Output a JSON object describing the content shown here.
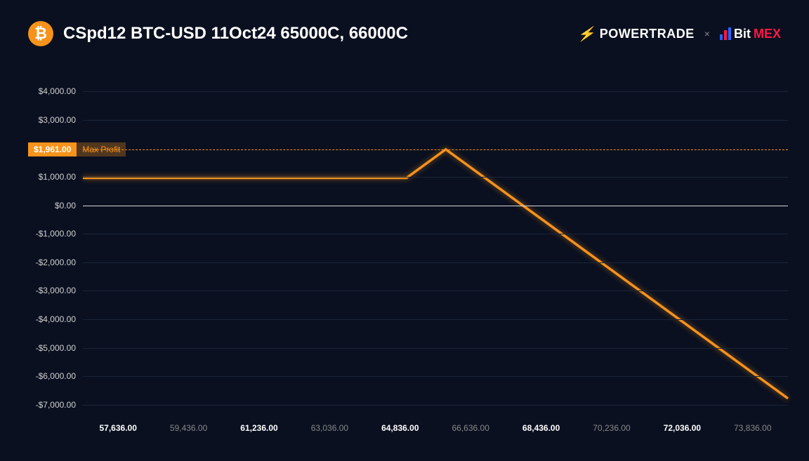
{
  "header": {
    "title": "CSpd12 BTC-USD 11Oct24 65000C, 66000C",
    "btc_glyph": "₿",
    "powertrade": "POWERTRADE",
    "separator": "×",
    "bitmex_prefix": "Bit",
    "bitmex_suffix": "MEX"
  },
  "chart": {
    "type": "line",
    "background_color": "#0a1020",
    "line_color": "#f7931a",
    "line_width": 3.5,
    "grid_color": "#1a2438",
    "zero_line_color": "#d8d8d8",
    "max_profit_color": "#f7931a",
    "y": {
      "min": -7000,
      "max": 4000,
      "ticks": [
        {
          "v": 4000,
          "label": "$4,000.00"
        },
        {
          "v": 3000,
          "label": "$3,000.00"
        },
        {
          "v": 1000,
          "label": "$1,000.00"
        },
        {
          "v": 0,
          "label": "$0.00"
        },
        {
          "v": -1000,
          "label": "-$1,000.00"
        },
        {
          "v": -2000,
          "label": "-$2,000.00"
        },
        {
          "v": -3000,
          "label": "-$3,000.00"
        },
        {
          "v": -4000,
          "label": "-$4,000.00"
        },
        {
          "v": -5000,
          "label": "-$5,000.00"
        },
        {
          "v": -6000,
          "label": "-$6,000.00"
        },
        {
          "v": -7000,
          "label": "-$7,000.00"
        }
      ]
    },
    "x": {
      "min": 56736,
      "max": 74736,
      "ticks": [
        {
          "v": 57636,
          "label": "57,636.00",
          "bold": true
        },
        {
          "v": 59436,
          "label": "59,436.00",
          "bold": false
        },
        {
          "v": 61236,
          "label": "61,236.00",
          "bold": true
        },
        {
          "v": 63036,
          "label": "63,036.00",
          "bold": false
        },
        {
          "v": 64836,
          "label": "64,836.00",
          "bold": true
        },
        {
          "v": 66636,
          "label": "66,636.00",
          "bold": false
        },
        {
          "v": 68436,
          "label": "68,436.00",
          "bold": true
        },
        {
          "v": 70236,
          "label": "70,236.00",
          "bold": false
        },
        {
          "v": 72036,
          "label": "72,036.00",
          "bold": true
        },
        {
          "v": 73836,
          "label": "73,836.00",
          "bold": false
        }
      ]
    },
    "max_profit": {
      "value": 1961,
      "value_label": "$1,961.00",
      "text": "Max Profit"
    },
    "series": [
      {
        "x": 56736,
        "y": 961
      },
      {
        "x": 65000,
        "y": 961
      },
      {
        "x": 66000,
        "y": 1961
      },
      {
        "x": 74736,
        "y": -6775
      }
    ]
  }
}
